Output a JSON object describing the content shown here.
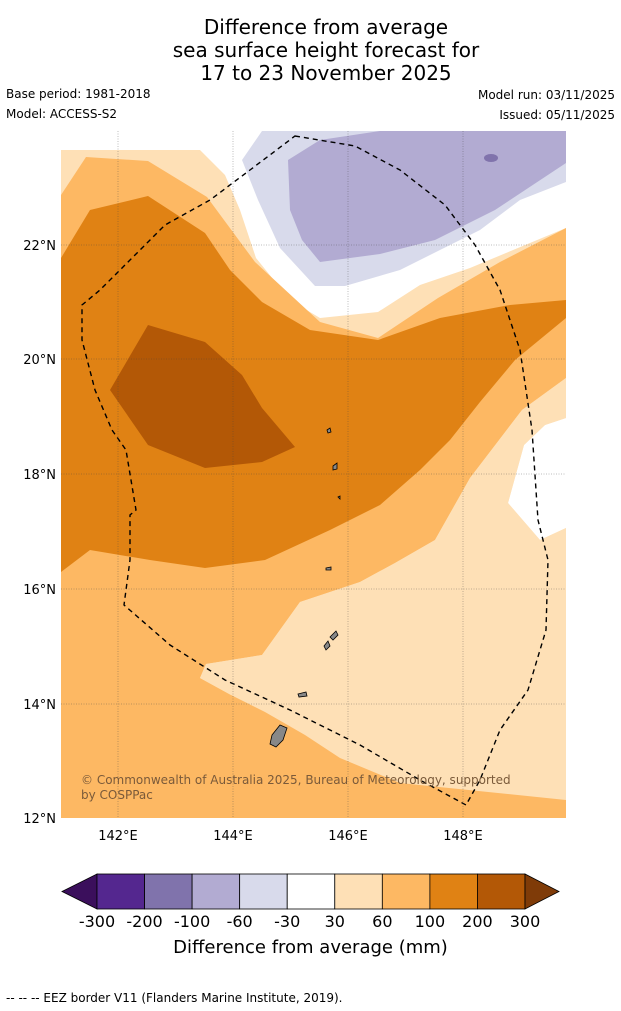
{
  "header": {
    "title_line1": "Difference from average",
    "title_line2": "sea surface height forecast for",
    "title_line3": "17 to 23 November 2025",
    "base_period": "Base period: 1981-2018",
    "model": "Model: ACCESS-S2",
    "model_run": "Model run: 03/11/2025",
    "issued": "Issued: 05/11/2025"
  },
  "map": {
    "lat_labels": [
      "22°N",
      "20°N",
      "18°N",
      "16°N",
      "14°N",
      "12°N"
    ],
    "lon_labels": [
      "142°E",
      "144°E",
      "146°E",
      "148°E"
    ],
    "copyright": "© Commonwealth of Australia 2025, Bureau of Meteorology, supported by COSPPac",
    "copyright_line1": "© Commonwealth of Australia 2025, Bureau of Meteorology, supported",
    "copyright_line2": "by COSPPac"
  },
  "colorbar": {
    "ticks": [
      "-300",
      "-200",
      "-100",
      "-60",
      "-30",
      "30",
      "60",
      "100",
      "200",
      "300"
    ],
    "colors": [
      "#3b0f5c",
      "#54278f",
      "#8073ac",
      "#b2abd2",
      "#d8daeb",
      "#ffffff",
      "#fee0b6",
      "#fdb863",
      "#e08214",
      "#b35806",
      "#7f3b08"
    ],
    "label": "Difference from average (mm)"
  },
  "footer": {
    "eez_note": "--  --  -- EEZ border V11 (Flanders Marine Institute, 2019)."
  }
}
